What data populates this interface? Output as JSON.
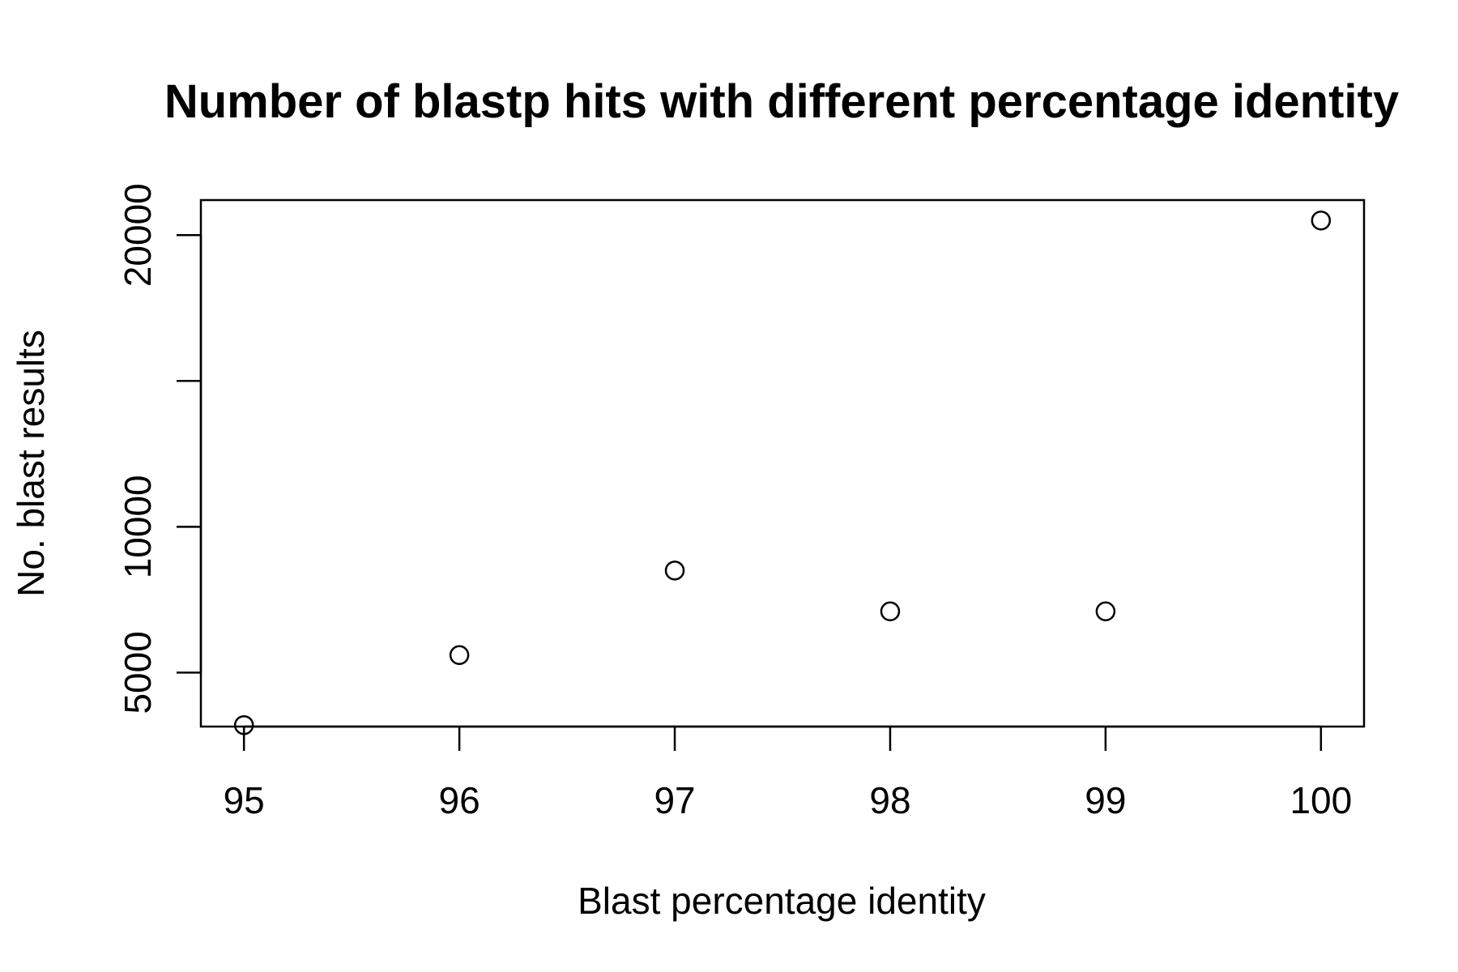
{
  "chart_data": {
    "type": "scatter",
    "title": "Number of blastp hits with different percentage identity",
    "xlabel": "Blast percentage identity",
    "ylabel": "No. blast results",
    "x": [
      95,
      96,
      97,
      98,
      99,
      100
    ],
    "y": [
      3200,
      5600,
      8500,
      7100,
      7100,
      20500
    ],
    "xlim": [
      94.8,
      100.2
    ],
    "ylim": [
      3150,
      21200
    ],
    "x_ticks": [
      "95",
      "96",
      "97",
      "98",
      "99",
      "100"
    ],
    "y_ticks": [
      {
        "value": 5000,
        "label": "5000"
      },
      {
        "value": 10000,
        "label": "10000"
      },
      {
        "value": 15000,
        "label": ""
      },
      {
        "value": 20000,
        "label": "20000"
      }
    ],
    "grid": false,
    "marker": "open-circle",
    "colors": {
      "marker": "#000000",
      "frame": "#000000"
    }
  }
}
